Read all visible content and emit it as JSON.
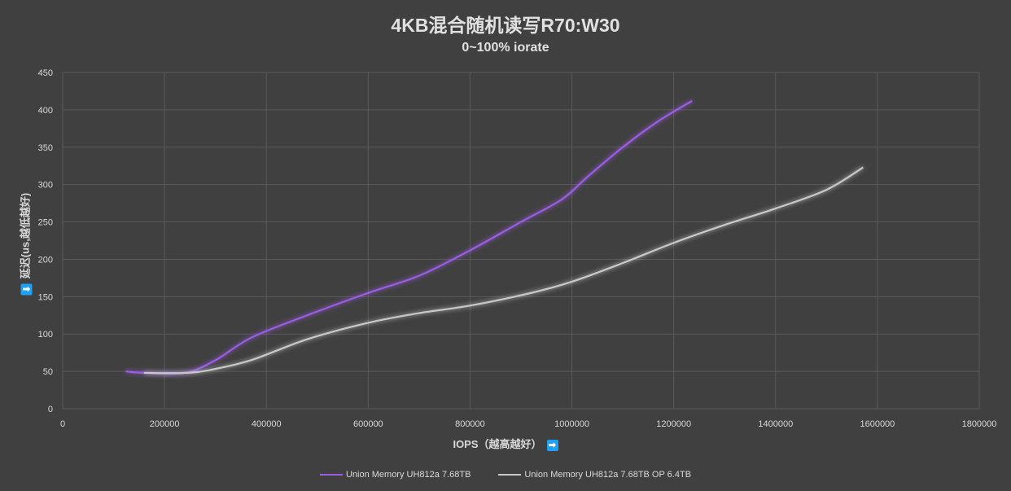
{
  "chart_data": {
    "type": "line",
    "title": "4KB混合随机读写R70:W30",
    "subtitle": "0~100% iorate",
    "xlabel": "IOPS（越高越好）",
    "ylabel": "延迟(us,越低越好)",
    "xlim": [
      0,
      1800000
    ],
    "ylim": [
      0,
      450
    ],
    "xticks": [
      0,
      200000,
      400000,
      600000,
      800000,
      1000000,
      1200000,
      1400000,
      1600000,
      1800000
    ],
    "yticks": [
      0,
      50,
      100,
      150,
      200,
      250,
      300,
      350,
      400,
      450
    ],
    "grid": true,
    "legend_position": "bottom",
    "series": [
      {
        "name": "Union Memory UH812a 7.68TB",
        "color": "#9b5de5",
        "x": [
          124000,
          160000,
          240000,
          300000,
          370000,
          480000,
          600000,
          700000,
          800000,
          900000,
          980000,
          1030000,
          1100000,
          1170000,
          1236000
        ],
        "y": [
          50,
          48,
          48,
          65,
          95,
          125,
          155,
          178,
          212,
          250,
          280,
          310,
          350,
          385,
          412
        ]
      },
      {
        "name": "Union Memory UH812a 7.68TB OP 6.4TB",
        "color": "#c8c8c8",
        "x": [
          160000,
          240000,
          290000,
          370000,
          480000,
          600000,
          700000,
          800000,
          920000,
          1000000,
          1100000,
          1200000,
          1300000,
          1400000,
          1500000,
          1572000
        ],
        "y": [
          48,
          48,
          52,
          65,
          93,
          115,
          128,
          138,
          155,
          170,
          195,
          222,
          246,
          268,
          293,
          323
        ]
      }
    ]
  }
}
